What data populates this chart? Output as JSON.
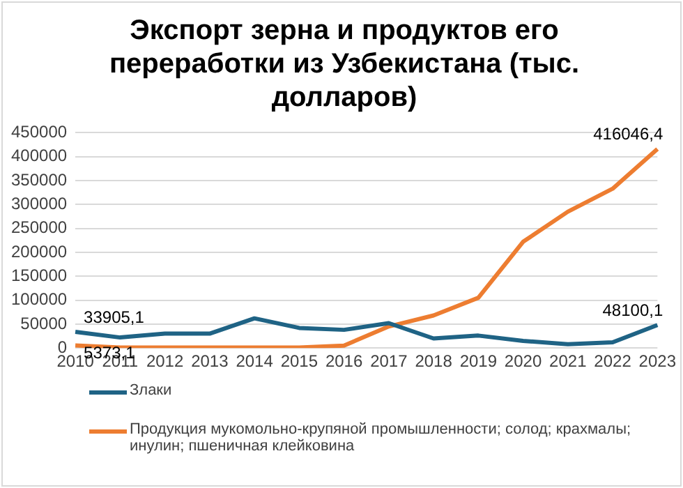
{
  "chart_data": {
    "type": "line",
    "title": "Экспорт зерна и продуктов его переработки из Узбекистана (тыс. долларов)",
    "categories": [
      "2010",
      "2011",
      "2012",
      "2013",
      "2014",
      "2015",
      "2016",
      "2017",
      "2018",
      "2019",
      "2020",
      "2021",
      "2022",
      "2023"
    ],
    "series": [
      {
        "name": "Злаки",
        "color": "#1f6385",
        "values": [
          33905.1,
          22000,
          30000,
          30000,
          62000,
          42000,
          38000,
          52000,
          20000,
          26000,
          15000,
          8000,
          12000,
          48100.1
        ],
        "value_labels": [
          "33905,1",
          null,
          null,
          null,
          null,
          null,
          null,
          null,
          null,
          null,
          null,
          null,
          null,
          "48100,1"
        ]
      },
      {
        "name": "Продукция мукомольно-крупяной промышленности; солод; крахмалы; инулин; пшеничная клейковина",
        "color": "#ed7d31",
        "values": [
          5373.1,
          1000,
          1000,
          1000,
          1000,
          1000,
          5000,
          45000,
          68000,
          105000,
          222000,
          285000,
          333000,
          416046.4
        ],
        "value_labels": [
          "5373,1",
          null,
          null,
          null,
          null,
          null,
          null,
          null,
          null,
          null,
          null,
          null,
          null,
          "416046,4"
        ]
      }
    ],
    "ylim": [
      0,
      450000
    ],
    "yticks": [
      0,
      50000,
      100000,
      150000,
      200000,
      250000,
      300000,
      350000,
      400000,
      450000
    ],
    "grid": "y",
    "legend": "bottom",
    "marker": "none",
    "line_style": "solid"
  }
}
